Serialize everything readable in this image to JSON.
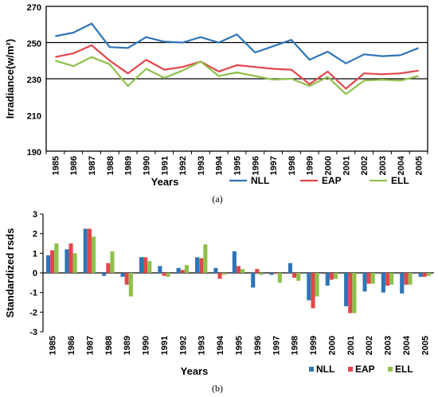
{
  "chart_data": [
    {
      "type": "line",
      "panel_label": "(a)",
      "xlabel": "Years",
      "ylabel": "Irradiance(w/m²)",
      "ylim": [
        190,
        270
      ],
      "yticks": [
        190,
        210,
        230,
        250,
        270
      ],
      "grid_y": [
        230,
        250
      ],
      "legend_position": "bottom-right",
      "categories": [
        "1985",
        "1986",
        "1987",
        "1988",
        "1989",
        "1990",
        "1991",
        "1992",
        "1993",
        "1994",
        "1995",
        "1996",
        "1997",
        "1998",
        "1999",
        "2000",
        "2001",
        "2002",
        "2003",
        "2004",
        "2005"
      ],
      "series": [
        {
          "name": "NLL",
          "color": "#2e75b6",
          "values": [
            253.5,
            255.5,
            260.5,
            247.5,
            247,
            253,
            250.5,
            250,
            253,
            250,
            254.5,
            244.5,
            248,
            251.5,
            240.5,
            245,
            238.5,
            243.5,
            242.5,
            243,
            247
          ]
        },
        {
          "name": "EAP",
          "color": "#e0474c",
          "values": [
            242,
            244,
            248.5,
            240,
            233,
            240.5,
            235,
            236.5,
            239.5,
            234,
            237.5,
            236.5,
            235.5,
            235,
            227,
            234,
            224.5,
            233,
            232.5,
            233,
            234.5
          ]
        },
        {
          "name": "ELL",
          "color": "#8fc04a",
          "values": [
            240,
            237,
            242,
            238,
            226,
            235.5,
            230.5,
            234.5,
            239.5,
            231.5,
            233.5,
            231.5,
            229.5,
            230,
            226,
            231,
            221.5,
            229,
            229.5,
            229,
            231.5
          ]
        }
      ]
    },
    {
      "type": "bar",
      "panel_label": "(b)",
      "xlabel": "Years",
      "ylabel": "Standardized rsds",
      "ylim": [
        -3,
        3
      ],
      "yticks": [
        -3,
        -2,
        -1,
        0,
        1,
        2,
        3
      ],
      "legend_position": "bottom-right",
      "categories": [
        "1985",
        "1986",
        "1987",
        "1988",
        "1989",
        "1990",
        "1991",
        "1992",
        "1993",
        "1994",
        "1995",
        "1996",
        "1997",
        "1998",
        "1999",
        "2000",
        "2001",
        "2002",
        "2003",
        "2004",
        "2005"
      ],
      "series": [
        {
          "name": "NLL",
          "color": "#2e75b6",
          "values": [
            0.9,
            1.2,
            2.25,
            -0.15,
            -0.2,
            0.8,
            0.35,
            0.25,
            0.8,
            0.25,
            1.1,
            -0.75,
            -0.1,
            0.5,
            -1.4,
            -0.65,
            -1.7,
            -0.95,
            -1.0,
            -1.05,
            -0.2
          ]
        },
        {
          "name": "EAP",
          "color": "#e0474c",
          "values": [
            1.15,
            1.5,
            2.25,
            0.5,
            -0.6,
            0.8,
            -0.15,
            0.15,
            0.75,
            -0.3,
            0.35,
            0.2,
            -0.05,
            -0.25,
            -1.8,
            -0.35,
            -2.05,
            -0.55,
            -0.65,
            -0.6,
            -0.2
          ]
        },
        {
          "name": "ELL",
          "color": "#8fc04a",
          "values": [
            1.5,
            1.0,
            1.85,
            1.1,
            -1.2,
            0.6,
            -0.2,
            0.4,
            1.45,
            -0.1,
            0.2,
            -0.1,
            -0.5,
            -0.4,
            -1.2,
            -0.3,
            -2.05,
            -0.55,
            -0.6,
            -0.6,
            -0.15
          ]
        }
      ]
    }
  ]
}
